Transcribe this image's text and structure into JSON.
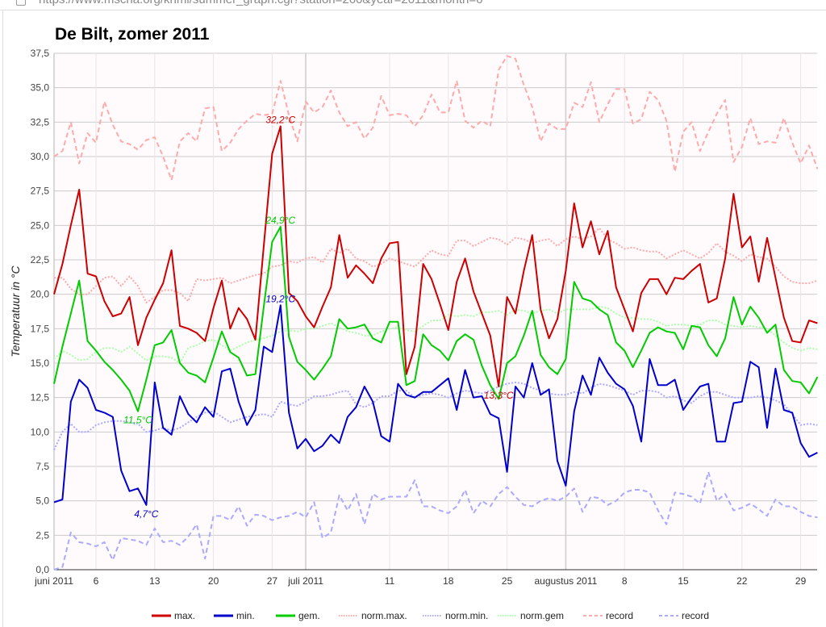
{
  "browser": {
    "url": "https://www.mscha.org/knmi/summer_graph.cgi?station=260&year=2011&month=6"
  },
  "chart_data": {
    "type": "line",
    "title": "De Bilt, zomer 2011",
    "ylabel": "Temperatuur in °C",
    "xlabel": "",
    "ylim": [
      0,
      37.5
    ],
    "yticks": [
      "0,0",
      "2,5",
      "5,0",
      "7,5",
      "10,0",
      "12,5",
      "15,0",
      "17,5",
      "20,0",
      "22,5",
      "25,0",
      "27,5",
      "30,0",
      "32,5",
      "35,0",
      "37,5"
    ],
    "x_start": "2011-06-01",
    "x_days": 92,
    "xticks": [
      {
        "day": 0,
        "label": "juni 2011",
        "month_start": true
      },
      {
        "day": 5,
        "label": "6"
      },
      {
        "day": 12,
        "label": "13"
      },
      {
        "day": 19,
        "label": "20"
      },
      {
        "day": 26,
        "label": "27"
      },
      {
        "day": 30,
        "label": "juli 2011",
        "month_start": true
      },
      {
        "day": 40,
        "label": "11"
      },
      {
        "day": 47,
        "label": "18"
      },
      {
        "day": 54,
        "label": "25"
      },
      {
        "day": 61,
        "label": "augustus 2011",
        "month_start": true
      },
      {
        "day": 68,
        "label": "8"
      },
      {
        "day": 75,
        "label": "15"
      },
      {
        "day": 82,
        "label": "22"
      },
      {
        "day": 89,
        "label": "29"
      }
    ],
    "grid": true,
    "legend_position": "bottom",
    "series": [
      {
        "name": "max.",
        "color": "#cc0000",
        "style": "solid",
        "values": [
          20.0,
          22.2,
          25.0,
          27.6,
          21.5,
          21.3,
          19.5,
          18.4,
          18.6,
          19.8,
          16.3,
          18.3,
          19.6,
          20.8,
          23.2,
          17.7,
          17.5,
          17.2,
          16.6,
          19.0,
          21.0,
          17.5,
          19.0,
          18.2,
          16.7,
          23.5,
          30.2,
          32.2,
          20.1,
          19.5,
          18.4,
          17.6,
          19.1,
          20.5,
          24.3,
          21.2,
          22.1,
          21.5,
          20.8,
          22.6,
          23.7,
          23.8,
          14.2,
          16.2,
          22.2,
          21.1,
          19.3,
          17.4,
          20.9,
          22.6,
          20.2,
          18.6,
          17.0,
          13.3,
          19.8,
          18.6,
          21.7,
          24.3,
          18.9,
          16.8,
          18.2,
          21.7,
          26.6,
          23.4,
          25.3,
          22.9,
          24.6,
          20.5,
          18.9,
          17.3,
          20.1,
          21.1,
          21.1,
          20.0,
          21.2,
          21.1,
          21.7,
          22.2,
          19.4,
          19.7,
          22.6,
          27.3,
          23.4,
          24.2,
          20.9,
          24.1,
          21.2,
          18.3,
          16.6,
          16.5,
          18.1,
          17.9
        ]
      },
      {
        "name": "min.",
        "color": "#0000cc",
        "style": "solid",
        "values": [
          4.9,
          5.1,
          12.2,
          13.8,
          13.2,
          11.6,
          11.4,
          11.1,
          7.2,
          5.7,
          5.9,
          4.7,
          13.6,
          10.3,
          9.8,
          12.6,
          11.3,
          10.7,
          11.8,
          11.1,
          14.4,
          14.6,
          12.2,
          10.5,
          11.6,
          16.2,
          15.8,
          19.2,
          11.4,
          8.8,
          9.5,
          8.6,
          9.0,
          9.8,
          9.2,
          11.1,
          11.8,
          13.3,
          12.2,
          9.7,
          9.3,
          13.5,
          12.7,
          12.5,
          12.9,
          12.9,
          13.4,
          13.9,
          11.6,
          14.5,
          12.5,
          12.6,
          11.3,
          11.0,
          7.1,
          13.3,
          12.5,
          15.0,
          12.7,
          13.1,
          7.9,
          6.1,
          11.5,
          14.1,
          12.7,
          15.4,
          14.3,
          13.5,
          13.1,
          11.9,
          9.3,
          15.3,
          13.4,
          13.4,
          13.8,
          11.6,
          12.5,
          13.3,
          13.5,
          9.3,
          9.3,
          12.1,
          12.2,
          15.1,
          14.7,
          10.3,
          14.6,
          11.6,
          11.4,
          9.2,
          8.2,
          8.5
        ]
      },
      {
        "name": "gem.",
        "color": "#00cc00",
        "style": "solid",
        "values": [
          13.5,
          16.2,
          18.6,
          21.0,
          16.6,
          15.9,
          15.1,
          14.5,
          13.8,
          13.0,
          11.5,
          13.8,
          16.3,
          16.5,
          17.4,
          15.0,
          14.3,
          14.1,
          13.6,
          15.4,
          17.3,
          15.8,
          15.4,
          14.1,
          14.2,
          19.1,
          23.8,
          24.9,
          16.9,
          15.1,
          14.5,
          13.8,
          14.6,
          15.5,
          18.2,
          17.5,
          17.6,
          17.8,
          16.8,
          16.5,
          18.0,
          18.0,
          13.4,
          13.7,
          17.1,
          16.3,
          15.9,
          15.2,
          16.6,
          17.1,
          16.7,
          14.8,
          13.4,
          12.4,
          15.0,
          15.5,
          17.0,
          18.8,
          15.6,
          14.7,
          14.2,
          15.3,
          20.9,
          19.7,
          19.5,
          18.9,
          18.5,
          16.5,
          15.9,
          14.7,
          15.9,
          17.2,
          17.6,
          17.3,
          17.2,
          16.0,
          17.7,
          17.6,
          16.3,
          15.5,
          16.8,
          19.8,
          17.8,
          19.1,
          18.3,
          17.2,
          17.8,
          14.5,
          13.7,
          13.6,
          12.8,
          14.0
        ]
      },
      {
        "name": "norm.max.",
        "color": "#ffaaaa",
        "style": "dotted",
        "values": [
          21.2,
          21.2,
          20.4,
          20.0,
          20.0,
          20.6,
          21.2,
          21.3,
          20.6,
          21.3,
          20.6,
          19.4,
          19.8,
          20.3,
          20.3,
          20.1,
          19.5,
          21.1,
          21.0,
          21.1,
          21.2,
          20.8,
          21.0,
          21.2,
          21.4,
          21.5,
          22.0,
          22.1,
          22.4,
          22.3,
          22.6,
          22.7,
          22.3,
          23.3,
          23.0,
          23.3,
          22.6,
          22.4,
          22.0,
          22.2,
          22.6,
          22.4,
          22.2,
          22.0,
          22.6,
          23.2,
          22.9,
          22.8,
          23.9,
          23.9,
          23.5,
          23.8,
          24.1,
          24.0,
          23.6,
          24.1,
          24.0,
          23.7,
          23.9,
          24.0,
          23.5,
          24.0,
          24.2,
          24.0,
          24.2,
          24.8,
          24.0,
          23.7,
          23.3,
          23.4,
          23.2,
          23.1,
          23.1,
          22.6,
          22.9,
          23.2,
          22.9,
          22.6,
          23.0,
          23.7,
          23.1,
          22.8,
          22.4,
          22.9,
          22.7,
          22.6,
          22.0,
          21.3,
          20.9,
          20.8,
          20.8,
          21.0
        ]
      },
      {
        "name": "norm.min.",
        "color": "#aaaaff",
        "style": "dotted",
        "values": [
          8.7,
          10.0,
          10.6,
          10.0,
          10.0,
          10.5,
          10.7,
          10.8,
          10.8,
          10.7,
          10.6,
          10.0,
          10.1,
          10.3,
          10.1,
          10.3,
          10.7,
          11.1,
          11.4,
          11.5,
          11.1,
          10.7,
          10.9,
          11.1,
          11.2,
          11.3,
          11.1,
          12.2,
          12.0,
          11.9,
          12.2,
          12.6,
          12.6,
          12.7,
          12.9,
          13.0,
          12.0,
          11.8,
          12.1,
          12.6,
          12.6,
          13.0,
          13.0,
          12.5,
          12.7,
          12.8,
          12.7,
          12.5,
          12.8,
          13.0,
          12.9,
          12.8,
          13.0,
          13.3,
          13.5,
          13.6,
          13.5,
          13.2,
          13.0,
          12.8,
          12.7,
          12.7,
          12.9,
          12.8,
          13.2,
          13.5,
          13.4,
          13.2,
          13.0,
          12.7,
          13.0,
          13.0,
          12.9,
          12.5,
          12.6,
          12.3,
          12.1,
          12.6,
          12.9,
          12.9,
          12.7,
          12.5,
          12.5,
          12.5,
          12.6,
          12.5,
          12.3,
          12.0,
          11.3,
          10.5,
          10.6,
          10.5
        ]
      },
      {
        "name": "norm.gem",
        "color": "#aaffaa",
        "style": "dotted",
        "values": [
          15.3,
          15.9,
          15.6,
          15.2,
          15.3,
          15.8,
          16.1,
          16.1,
          15.8,
          16.2,
          15.7,
          15.2,
          15.5,
          15.5,
          15.4,
          15.0,
          16.1,
          16.3,
          16.6,
          16.7,
          16.3,
          15.9,
          16.2,
          16.5,
          16.7,
          16.8,
          17.0,
          17.3,
          17.4,
          17.3,
          17.5,
          17.5,
          17.7,
          17.9,
          17.6,
          17.3,
          17.2,
          17.0,
          17.0,
          17.3,
          17.5,
          17.6,
          17.4,
          17.3,
          17.7,
          18.1,
          18.1,
          18.5,
          18.4,
          18.5,
          18.4,
          18.7,
          18.7,
          18.8,
          18.5,
          18.9,
          18.8,
          18.6,
          18.8,
          18.9,
          18.6,
          18.9,
          18.9,
          18.9,
          18.9,
          19.1,
          19.0,
          18.6,
          18.3,
          18.3,
          18.2,
          18.2,
          18.0,
          17.7,
          17.8,
          17.8,
          17.7,
          17.8,
          18.1,
          18.1,
          17.8,
          17.7,
          17.6,
          17.7,
          17.6,
          17.5,
          17.0,
          16.5,
          16.1,
          15.9,
          16.1,
          16.0
        ]
      },
      {
        "name": "record",
        "color": "#ffaaaa",
        "style": "dashed",
        "values": [
          30.0,
          30.4,
          32.5,
          29.5,
          31.7,
          31.0,
          34.0,
          32.3,
          31.1,
          30.9,
          30.5,
          31.2,
          31.4,
          30.0,
          28.3,
          31.1,
          31.7,
          31.1,
          33.5,
          33.6,
          30.4,
          31.0,
          32.0,
          32.6,
          33.1,
          33.0,
          33.1,
          35.5,
          33.0,
          31.1,
          34.0,
          33.2,
          33.6,
          34.8,
          33.2,
          32.2,
          32.5,
          31.3,
          32.1,
          34.4,
          33.0,
          33.1,
          33.0,
          32.2,
          33.0,
          34.5,
          33.2,
          33.2,
          35.5,
          32.6,
          32.1,
          32.6,
          32.2,
          36.3,
          37.3,
          37.1,
          35.2,
          33.6,
          31.1,
          32.4,
          32.0,
          32.0,
          33.9,
          33.6,
          35.4,
          32.5,
          33.8,
          34.9,
          34.9,
          32.4,
          32.7,
          34.7,
          34.1,
          32.6,
          28.9,
          31.8,
          32.5,
          30.4,
          31.8,
          33.1,
          34.1,
          29.6,
          30.7,
          32.8,
          30.9,
          31.1,
          31.0,
          32.8,
          31.0,
          29.5,
          30.8,
          29.1
        ]
      },
      {
        "name": "record",
        "color": "#aaaaff",
        "style": "dashed",
        "values": [
          0.0,
          0.2,
          2.7,
          2.0,
          1.9,
          1.7,
          2.0,
          0.7,
          2.3,
          2.2,
          2.1,
          1.8,
          3.0,
          2.0,
          2.1,
          1.8,
          2.4,
          3.3,
          0.8,
          3.9,
          3.9,
          3.6,
          4.6,
          3.2,
          4.0,
          3.9,
          3.6,
          3.8,
          3.9,
          4.2,
          3.8,
          4.9,
          2.3,
          2.7,
          5.4,
          4.3,
          5.5,
          3.3,
          5.5,
          5.1,
          5.3,
          5.3,
          5.3,
          6.5,
          4.6,
          4.6,
          4.3,
          4.1,
          4.6,
          5.8,
          4.1,
          5.0,
          4.6,
          5.5,
          6.0,
          5.3,
          4.7,
          4.6,
          5.0,
          5.2,
          5.0,
          5.3,
          5.9,
          4.2,
          5.3,
          5.2,
          4.7,
          5.0,
          5.6,
          5.8,
          5.8,
          5.6,
          4.3,
          3.3,
          5.6,
          5.5,
          5.3,
          4.8,
          7.1,
          5.0,
          5.5,
          4.3,
          4.5,
          4.8,
          4.4,
          3.9,
          5.1,
          4.6,
          4.6,
          4.2,
          3.9,
          3.8
        ]
      }
    ],
    "annotations": [
      {
        "series": 0,
        "day": 27,
        "text": "32,2°C",
        "color": "#cc0000",
        "pos": "above"
      },
      {
        "series": 2,
        "day": 27,
        "text": "24,9°C",
        "color": "#00cc00",
        "pos": "above"
      },
      {
        "series": 1,
        "day": 27,
        "text": "19,2°C",
        "color": "#0000cc",
        "pos": "above"
      },
      {
        "series": 2,
        "day": 10,
        "text": "11,5°C",
        "color": "#00cc00",
        "pos": "below"
      },
      {
        "series": 1,
        "day": 11,
        "text": "4,7°C",
        "color": "#0000cc",
        "pos": "below"
      },
      {
        "series": 0,
        "day": 53,
        "text": "13,3°C",
        "color": "#cc0000",
        "pos": "below"
      }
    ]
  }
}
